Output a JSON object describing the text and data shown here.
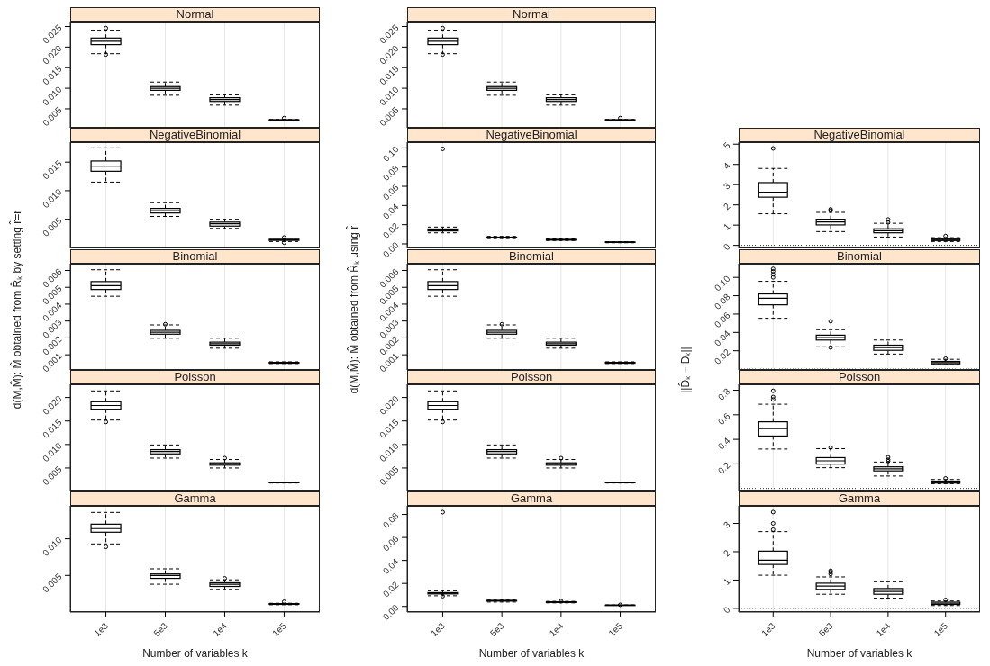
{
  "chart_data": [
    {
      "type": "box",
      "title": "Normal",
      "categories": [
        "1e3",
        "5e3",
        "1e4",
        "1e5"
      ],
      "grid": "x",
      "tick_labels": "y",
      "ylim": [
        0.0004,
        0.0262
      ],
      "yticks": [
        0.005,
        {
          "value": 0.01,
          "label": "0.010"
        },
        0.015,
        {
          "value": 0.02,
          "label": "0.020"
        },
        0.025
      ],
      "boxes": [
        {
          "low": 0.0184,
          "q1": 0.0206,
          "median": 0.0214,
          "q3": 0.0222,
          "high": 0.0241,
          "outliers": [
            0.0246,
            0.0182
          ]
        },
        {
          "low": 0.0083,
          "q1": 0.0095,
          "median": 0.01,
          "q3": 0.0104,
          "high": 0.0115
        },
        {
          "low": 0.0059,
          "q1": 0.0068,
          "median": 0.00725,
          "q3": 0.0077,
          "high": 0.0084
        },
        {
          "low": 0.0022,
          "q1": 0.00225,
          "median": 0.0023,
          "q3": 0.00235,
          "high": 0.0024,
          "outliers": [
            0.00275
          ]
        }
      ]
    },
    {
      "type": "box",
      "title": "NegativeBinomial",
      "categories": [
        "1e3",
        "5e3",
        "1e4",
        "1e5"
      ],
      "grid": "x",
      "tick_labels": "y",
      "ylim": [
        -0.0001,
        0.0185
      ],
      "yticks": [
        0.005,
        {
          "value": 0.01,
          "label": "0.010"
        },
        0.015
      ],
      "boxes": [
        {
          "low": 0.0115,
          "q1": 0.0134,
          "median": 0.0143,
          "q3": 0.0152,
          "high": 0.0175
        },
        {
          "low": 0.0055,
          "q1": 0.0061,
          "median": 0.0065,
          "q3": 0.0069,
          "high": 0.0079
        },
        {
          "low": 0.0034,
          "q1": 0.0038,
          "median": 0.0042,
          "q3": 0.0045,
          "high": 0.005
        },
        {
          "low": 0.0011,
          "q1": 0.0013,
          "median": 0.0014,
          "q3": 0.0015,
          "high": 0.0017,
          "outliers": [
            0.0018,
            0.0009
          ]
        }
      ]
    },
    {
      "type": "box",
      "title": "Binomial",
      "ylabel": "d(M,M̂): M̂ obtained from R̂ₖ by setting r̂=r",
      "categories": [
        "1e3",
        "5e3",
        "1e4",
        "1e5"
      ],
      "grid": "x",
      "tick_labels": "y",
      "ylim": [
        0.0001,
        0.0064
      ],
      "yticks": [
        0.001,
        0.002,
        0.003,
        0.004,
        0.005,
        0.006
      ],
      "boxes": [
        {
          "low": 0.00447,
          "q1": 0.00487,
          "median": 0.0051,
          "q3": 0.00534,
          "high": 0.00604
        },
        {
          "low": 0.00198,
          "q1": 0.00222,
          "median": 0.00234,
          "q3": 0.00245,
          "high": 0.00277,
          "outliers": [
            0.00281
          ]
        },
        {
          "low": 0.00139,
          "q1": 0.00157,
          "median": 0.00166,
          "q3": 0.00175,
          "high": 0.00198
        },
        {
          "low": 0.00048,
          "q1": 0.0005,
          "median": 0.00053,
          "q3": 0.00055,
          "high": 0.00058
        }
      ]
    },
    {
      "type": "box",
      "title": "Poisson",
      "categories": [
        "1e3",
        "5e3",
        "1e4",
        "1e5"
      ],
      "grid": "x",
      "tick_labels": "y",
      "ylim": [
        0.0002,
        0.0228
      ],
      "yticks": [
        0.005,
        {
          "value": 0.01,
          "label": "0.010"
        },
        0.015,
        {
          "value": 0.02,
          "label": "0.020"
        }
      ],
      "boxes": [
        {
          "low": 0.0152,
          "q1": 0.0175,
          "median": 0.0183,
          "q3": 0.0191,
          "high": 0.0214,
          "outliers": [
            0.0148
          ]
        },
        {
          "low": 0.0071,
          "q1": 0.008,
          "median": 0.0085,
          "q3": 0.0089,
          "high": 0.0099
        },
        {
          "low": 0.005,
          "q1": 0.0056,
          "median": 0.0059,
          "q3": 0.0061,
          "high": 0.0068,
          "outliers": [
            0.0071
          ]
        },
        {
          "low": 0.0018,
          "q1": 0.00185,
          "median": 0.0019,
          "q3": 0.00195,
          "high": 0.002
        }
      ]
    },
    {
      "type": "box",
      "title": "Gamma",
      "xlabel": "Number of variables k",
      "categories": [
        "1e3",
        "5e3",
        "1e4",
        "1e5"
      ],
      "grid": "x",
      "ylim": [
        0,
        0.0145
      ],
      "yticks": [
        0.005,
        {
          "value": 0.01,
          "label": "0.010"
        }
      ],
      "boxes": [
        {
          "low": 0.0093,
          "q1": 0.0109,
          "median": 0.0114,
          "q3": 0.012,
          "high": 0.0136,
          "outliers": [
            0.0089
          ]
        },
        {
          "low": 0.0038,
          "q1": 0.0046,
          "median": 0.005,
          "q3": 0.0052,
          "high": 0.0059
        },
        {
          "low": 0.0031,
          "q1": 0.0035,
          "median": 0.0038,
          "q3": 0.004,
          "high": 0.0044,
          "outliers": [
            0.0046
          ]
        },
        {
          "low": 0.001,
          "q1": 0.00105,
          "median": 0.0011,
          "q3": 0.00115,
          "high": 0.0012,
          "outliers": [
            0.0014
          ]
        }
      ]
    },
    {
      "type": "box",
      "title": "Normal",
      "categories": [
        "1e3",
        "5e3",
        "1e4",
        "1e5"
      ],
      "grid": "x",
      "tick_labels": "y",
      "ylim": [
        0.0004,
        0.0262
      ],
      "yticks": [
        0.005,
        {
          "value": 0.01,
          "label": "0.010"
        },
        0.015,
        {
          "value": 0.02,
          "label": "0.020"
        },
        0.025
      ],
      "boxes": [
        {
          "low": 0.0184,
          "q1": 0.0206,
          "median": 0.0214,
          "q3": 0.0222,
          "high": 0.0241,
          "outliers": [
            0.0246,
            0.0182
          ]
        },
        {
          "low": 0.0083,
          "q1": 0.0095,
          "median": 0.01,
          "q3": 0.0104,
          "high": 0.0115
        },
        {
          "low": 0.0059,
          "q1": 0.0068,
          "median": 0.00725,
          "q3": 0.0077,
          "high": 0.0084
        },
        {
          "low": 0.0022,
          "q1": 0.00225,
          "median": 0.0023,
          "q3": 0.00235,
          "high": 0.0024,
          "outliers": [
            0.00275
          ]
        }
      ]
    },
    {
      "type": "box",
      "title": "NegativeBinomial",
      "categories": [
        "1e3",
        "5e3",
        "1e4",
        "1e5"
      ],
      "grid": "x",
      "tick_labels": "y",
      "ylim": [
        -0.0047,
        0.106
      ],
      "yticks": [
        {
          "value": 0,
          "label": "0.00"
        },
        0.02,
        0.04,
        0.06,
        0.08,
        {
          "value": 0.1,
          "label": "0.10"
        }
      ],
      "boxes": [
        {
          "low": 0.0115,
          "q1": 0.0135,
          "median": 0.0145,
          "q3": 0.0155,
          "high": 0.0175,
          "outliers": [
            0.099
          ]
        },
        {
          "low": 0.0055,
          "q1": 0.0062,
          "median": 0.0066,
          "q3": 0.007,
          "high": 0.0078
        },
        {
          "low": 0.0035,
          "q1": 0.0039,
          "median": 0.0043,
          "q3": 0.0046,
          "high": 0.0051
        },
        {
          "low": 0.0012,
          "q1": 0.0016,
          "median": 0.0018,
          "q3": 0.002,
          "high": 0.0022
        }
      ]
    },
    {
      "type": "box",
      "title": "Binomial",
      "ylabel": "d(M,M̂): M̂ obtained from R̂ₖ using r̂",
      "categories": [
        "1e3",
        "5e3",
        "1e4",
        "1e5"
      ],
      "grid": "x",
      "tick_labels": "y",
      "ylim": [
        0.0001,
        0.0064
      ],
      "yticks": [
        0.001,
        0.002,
        0.003,
        0.004,
        0.005,
        0.006
      ],
      "boxes": [
        {
          "low": 0.00447,
          "q1": 0.00487,
          "median": 0.0051,
          "q3": 0.00534,
          "high": 0.00604
        },
        {
          "low": 0.00198,
          "q1": 0.00222,
          "median": 0.00234,
          "q3": 0.00245,
          "high": 0.00277,
          "outliers": [
            0.00281
          ]
        },
        {
          "low": 0.00139,
          "q1": 0.00157,
          "median": 0.00166,
          "q3": 0.00175,
          "high": 0.00198
        },
        {
          "low": 0.00048,
          "q1": 0.0005,
          "median": 0.00053,
          "q3": 0.00055,
          "high": 0.00058
        }
      ]
    },
    {
      "type": "box",
      "title": "Poisson",
      "categories": [
        "1e3",
        "5e3",
        "1e4",
        "1e5"
      ],
      "grid": "x",
      "tick_labels": "y",
      "ylim": [
        0.0002,
        0.0228
      ],
      "yticks": [
        0.005,
        {
          "value": 0.01,
          "label": "0.010"
        },
        0.015,
        {
          "value": 0.02,
          "label": "0.020"
        }
      ],
      "boxes": [
        {
          "low": 0.0152,
          "q1": 0.0175,
          "median": 0.0183,
          "q3": 0.0191,
          "high": 0.0214,
          "outliers": [
            0.0148
          ]
        },
        {
          "low": 0.0071,
          "q1": 0.008,
          "median": 0.0085,
          "q3": 0.0089,
          "high": 0.0099
        },
        {
          "low": 0.005,
          "q1": 0.0056,
          "median": 0.0059,
          "q3": 0.0061,
          "high": 0.0068,
          "outliers": [
            0.0071
          ]
        },
        {
          "low": 0.0018,
          "q1": 0.00185,
          "median": 0.0019,
          "q3": 0.00195,
          "high": 0.002
        }
      ]
    },
    {
      "type": "box",
      "title": "Gamma",
      "xlabel": "Number of variables k",
      "categories": [
        "1e3",
        "5e3",
        "1e4",
        "1e5"
      ],
      "grid": "x",
      "ylim": [
        -0.0049,
        0.0875
      ],
      "yticks": [
        {
          "value": 0,
          "label": "0.00"
        },
        0.02,
        0.04,
        0.06,
        0.08
      ],
      "boxes": [
        {
          "low": 0.0093,
          "q1": 0.0109,
          "median": 0.0114,
          "q3": 0.012,
          "high": 0.0136,
          "outliers": [
            0.0089,
            0.082
          ]
        },
        {
          "low": 0.0038,
          "q1": 0.0046,
          "median": 0.005,
          "q3": 0.0052,
          "high": 0.0059
        },
        {
          "low": 0.0031,
          "q1": 0.0035,
          "median": 0.0038,
          "q3": 0.004,
          "high": 0.0044,
          "outliers": [
            0.0046
          ]
        },
        {
          "low": 0.001,
          "q1": 0.00105,
          "median": 0.0011,
          "q3": 0.00115,
          "high": 0.0012,
          "outliers": [
            0.0014
          ]
        }
      ]
    },
    {
      "type": "box",
      "title": "NegativeBinomial",
      "categories": [
        "1e3",
        "5e3",
        "1e4",
        "1e5"
      ],
      "grid": "x",
      "tick_labels": "y",
      "ylim": [
        -0.15,
        5.1
      ],
      "yticks": [
        0,
        1,
        2,
        3,
        4,
        5
      ],
      "ref_lines": [
        {
          "axis": "y",
          "value": 0,
          "line_style": "dotted"
        }
      ],
      "boxes": [
        {
          "low": 1.56,
          "q1": 2.38,
          "median": 2.63,
          "q3": 3.1,
          "high": 3.8,
          "outliers": [
            4.79
          ]
        },
        {
          "low": 0.68,
          "q1": 1.01,
          "median": 1.16,
          "q3": 1.29,
          "high": 1.63,
          "outliers": [
            1.78,
            1.72
          ]
        },
        {
          "low": 0.41,
          "q1": 0.62,
          "median": 0.72,
          "q3": 0.82,
          "high": 1.09,
          "outliers": [
            1.28,
            1.13
          ]
        },
        {
          "low": 0.19,
          "q1": 0.24,
          "median": 0.26,
          "q3": 0.31,
          "high": 0.38,
          "outliers": [
            0.46
          ]
        }
      ]
    },
    {
      "type": "box",
      "title": "Binomial",
      "ylabel": "||D̂ₖ − Dₖ||",
      "categories": [
        "1e3",
        "5e3",
        "1e4",
        "1e5"
      ],
      "grid": "x",
      "tick_labels": "y",
      "ylim": [
        -0.0009,
        0.1149
      ],
      "yticks": [
        0.02,
        0.04,
        0.06,
        0.08,
        {
          "value": 0.1,
          "label": "0.10"
        }
      ],
      "ref_lines": [
        {
          "axis": "y",
          "value": 0,
          "line_style": "dotted"
        }
      ],
      "boxes": [
        {
          "low": 0.0554,
          "q1": 0.0701,
          "median": 0.0772,
          "q3": 0.082,
          "high": 0.0957,
          "outliers": [
            0.1093,
            0.1066,
            0.1033,
            0.1
          ]
        },
        {
          "low": 0.0243,
          "q1": 0.0317,
          "median": 0.0344,
          "q3": 0.037,
          "high": 0.043,
          "outliers": [
            0.0522,
            0.0236
          ]
        },
        {
          "low": 0.0164,
          "q1": 0.0205,
          "median": 0.0235,
          "q3": 0.0261,
          "high": 0.0317
        },
        {
          "low": 0.0051,
          "q1": 0.0058,
          "median": 0.0071,
          "q3": 0.0084,
          "high": 0.0107,
          "outliers": [
            0.0114
          ]
        }
      ]
    },
    {
      "type": "box",
      "title": "Poisson",
      "categories": [
        "1e3",
        "5e3",
        "1e4",
        "1e5"
      ],
      "grid": "x",
      "tick_labels": "y",
      "ylim": [
        -0.017,
        0.848
      ],
      "yticks": [
        0.2,
        0.4,
        0.6,
        0.8
      ],
      "ref_lines": [
        {
          "axis": "y",
          "value": 0,
          "line_style": "dotted"
        }
      ],
      "boxes": [
        {
          "low": 0.321,
          "q1": 0.427,
          "median": 0.487,
          "q3": 0.543,
          "high": 0.686,
          "outliers": [
            0.795,
            0.745,
            0.725
          ]
        },
        {
          "low": 0.169,
          "q1": 0.198,
          "median": 0.225,
          "q3": 0.251,
          "high": 0.324,
          "outliers": [
            0.333
          ]
        },
        {
          "low": 0.101,
          "q1": 0.143,
          "median": 0.16,
          "q3": 0.176,
          "high": 0.215,
          "outliers": [
            0.254,
            0.234,
            0.222
          ]
        },
        {
          "low": 0.039,
          "q1": 0.044,
          "median": 0.051,
          "q3": 0.06,
          "high": 0.073,
          "outliers": [
            0.082
          ]
        }
      ]
    },
    {
      "type": "box",
      "title": "Gamma",
      "xlabel": "Number of variables k",
      "categories": [
        "1e3",
        "5e3",
        "1e4",
        "1e5"
      ],
      "grid": "x",
      "ylim": [
        -0.13,
        3.62
      ],
      "yticks": [
        0,
        1,
        2,
        3
      ],
      "ref_lines": [
        {
          "axis": "y",
          "value": 0,
          "line_style": "dotted"
        }
      ],
      "boxes": [
        {
          "low": 1.17,
          "q1": 1.55,
          "median": 1.7,
          "q3": 2.02,
          "high": 2.71,
          "outliers": [
            3.4,
            3.0,
            2.78
          ]
        },
        {
          "low": 0.5,
          "q1": 0.67,
          "median": 0.79,
          "q3": 0.89,
          "high": 1.11,
          "outliers": [
            1.33,
            1.28,
            1.21
          ]
        },
        {
          "low": 0.36,
          "q1": 0.5,
          "median": 0.6,
          "q3": 0.7,
          "high": 0.94
        },
        {
          "low": 0.1,
          "q1": 0.14,
          "median": 0.18,
          "q3": 0.22,
          "high": 0.26,
          "outliers": [
            0.3
          ]
        }
      ]
    }
  ]
}
